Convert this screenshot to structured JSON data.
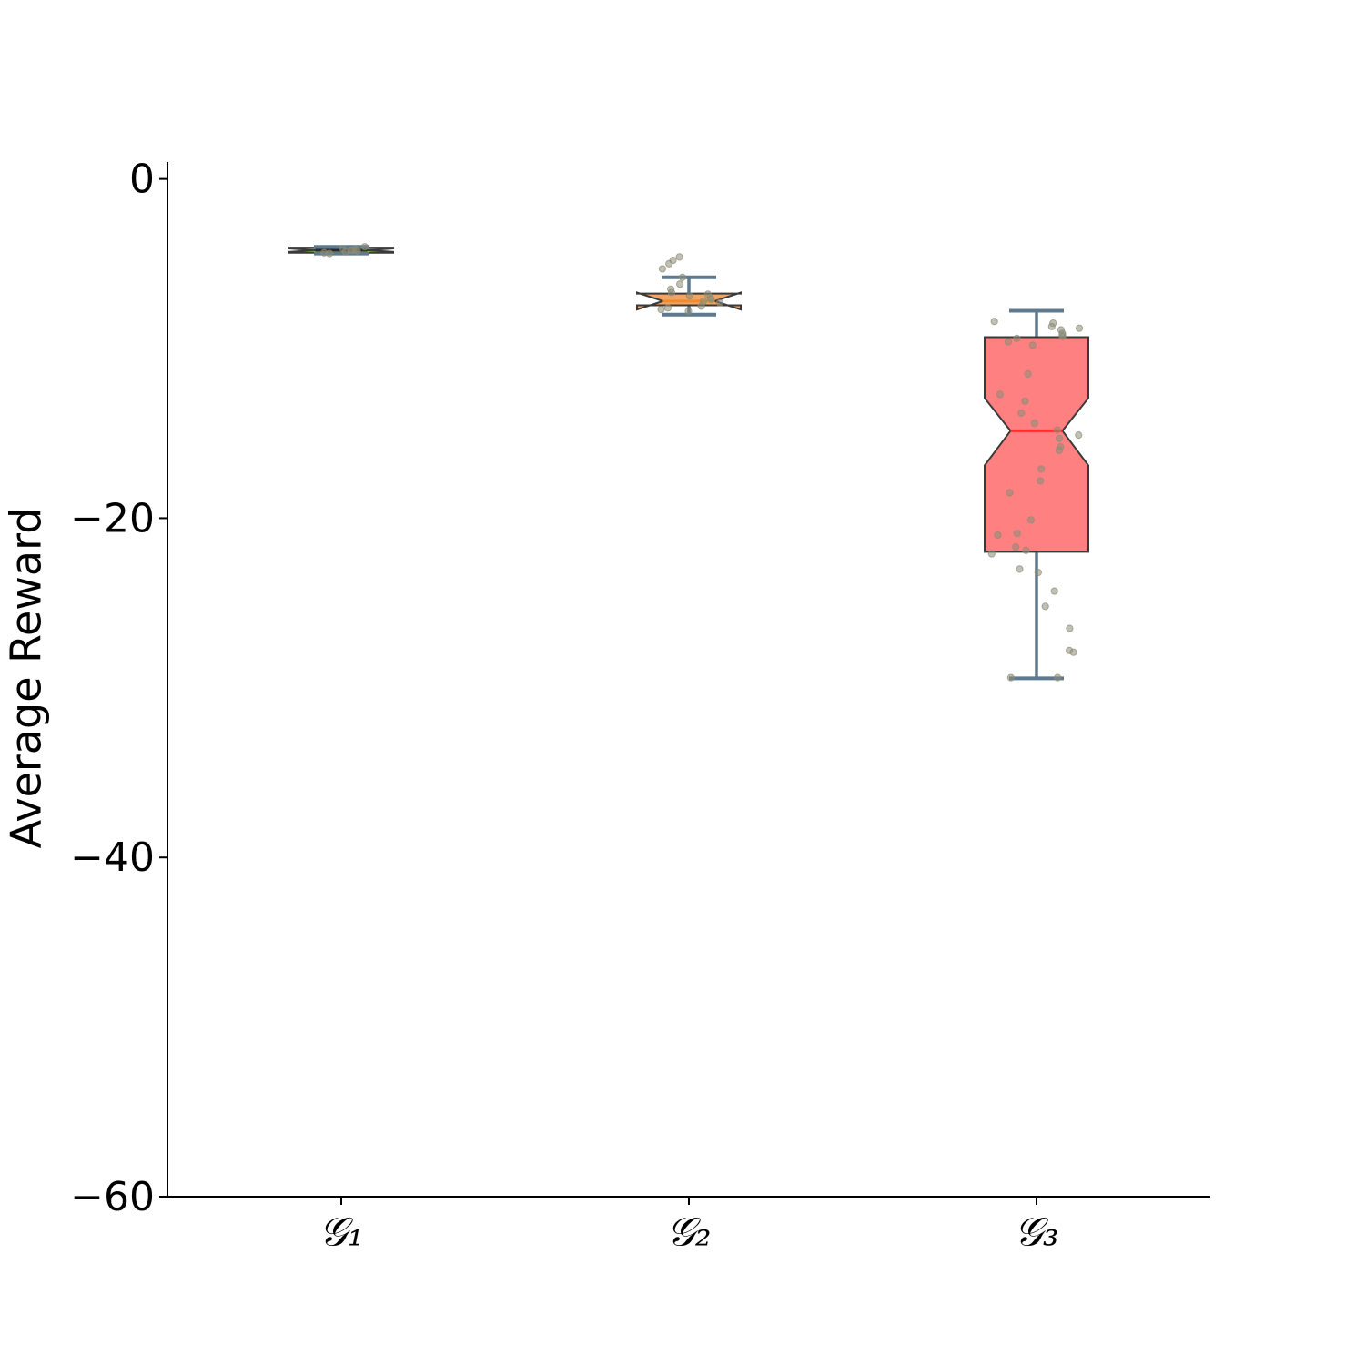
{
  "chart_data": {
    "type": "box",
    "y_label": "Average Reward",
    "ylim": [
      -60,
      1
    ],
    "yticks": [
      0,
      {
        "value": -20,
        "label": "−20"
      },
      {
        "value": -40,
        "label": "−40"
      },
      {
        "value": -60,
        "label": "−60"
      }
    ],
    "whisker_color": "#5f7a8e",
    "point_color": "#8c8c78",
    "categories": [
      "𝒢₁",
      "𝒢₂",
      "𝒢₃"
    ],
    "boxes": [
      {
        "color": "#7ccd32",
        "median_color": "#2a2a2a",
        "whislo": -4.4,
        "q1": -4.35,
        "notch_lo": -4.3,
        "med": -4.2,
        "notch_hi": -4.1,
        "q3": -4.05,
        "whishi": -4.0,
        "points": [
          -4.0,
          -4.1,
          -4.15,
          -4.2,
          -4.2,
          -4.25,
          -4.3,
          -4.35,
          -4.4
        ]
      },
      {
        "color": "#f4a460",
        "median_color": "#f08c30",
        "whislo": -8.0,
        "q1": -7.45,
        "notch_lo": -7.7,
        "med": -7.2,
        "notch_hi": -6.7,
        "q3": -6.76,
        "whishi": -5.8,
        "points": [
          -4.6,
          -4.8,
          -5.0,
          -5.3,
          -5.8,
          -6.2,
          -6.5,
          -6.7,
          -6.8,
          -6.9,
          -7.0,
          -7.1,
          -7.2,
          -7.3,
          -7.5,
          -7.6,
          -7.7,
          -7.8
        ]
      },
      {
        "color": "#ff8080",
        "median_color": "#ff3030",
        "whislo": -29.44,
        "q1": -21.98,
        "notch_lo": -16.89,
        "med": -14.85,
        "notch_hi": -12.92,
        "q3": -9.33,
        "whishi": -7.77,
        "points": [
          -8.4,
          -8.5,
          -8.7,
          -8.8,
          -8.9,
          -9.1,
          -9.2,
          -9.3,
          -9.4,
          -9.6,
          -9.8,
          -11.5,
          -12.7,
          -13.1,
          -13.8,
          -14.4,
          -14.8,
          -15.1,
          -15.3,
          -15.8,
          -16.0,
          -17.1,
          -17.8,
          -18.5,
          -20.1,
          -20.9,
          -21.0,
          -21.7,
          -21.9,
          -22.1,
          -23.0,
          -23.2,
          -24.3,
          -25.2,
          -26.5,
          -27.8,
          -27.9,
          -29.4,
          -29.4
        ]
      }
    ]
  }
}
